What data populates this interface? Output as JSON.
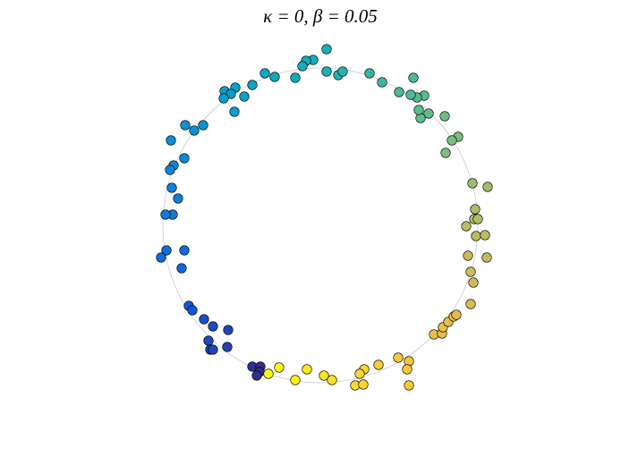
{
  "chart_data": {
    "type": "scatter",
    "title": "κ = 0, β = 0.05",
    "xlim": [
      -229,
      229
    ],
    "ylim": [
      -229,
      229
    ],
    "colormap": "parula",
    "reference_circle": {
      "r": 176
    },
    "x": [
      7,
      -8,
      -16,
      -20,
      7,
      20,
      25,
      -28,
      -51,
      -62,
      -76,
      -95,
      -107,
      -100,
      -108,
      -85,
      -96,
      -131,
      -151,
      -141,
      -167,
      -152,
      -164,
      -168,
      -166,
      -159,
      -165,
      -173,
      -152,
      -172,
      -178,
      -155,
      -147,
      -143,
      -130,
      -120,
      -103,
      -125,
      -104,
      -123,
      -120,
      -76,
      -67,
      -68,
      -71,
      -58,
      -46,
      -28,
      -15,
      4,
      13,
      39,
      48,
      49,
      44,
      65,
      87,
      99,
      97,
      99,
      127,
      136,
      137,
      143,
      149,
      152,
      168,
      171,
      168,
      165,
      186,
      174,
      184,
      163,
      172,
      176,
      173,
      187,
      170,
      140,
      154,
      147,
      139,
      121,
      112,
      110,
      116,
      108,
      101,
      88,
      69,
      55,
      104
    ],
    "y": [
      197,
      185,
      184,
      178,
      172,
      168,
      172,
      165,
      166,
      170,
      157,
      154,
      150,
      147,
      142,
      144,
      127,
      112,
      112,
      106,
      95,
      75,
      67,
      62,
      42,
      30,
      12,
      12,
      -28,
      -28,
      -36,
      -48,
      -90,
      -95,
      -105,
      -113,
      -117,
      -129,
      -136,
      -139,
      -139,
      -158,
      -158,
      -164,
      -168,
      -166,
      -159,
      -173,
      -161,
      -168,
      -173,
      -179,
      -178,
      -161,
      -166,
      -156,
      -148,
      -152,
      -161,
      -179,
      -122,
      -121,
      -114,
      -108,
      -102,
      -100,
      -88,
      -64,
      -52,
      -34,
      -36,
      -12,
      -11,
      -1,
      7,
      7,
      18,
      43,
      47,
      81,
      99,
      95,
      122,
      125,
      120,
      129,
      145,
      143,
      146,
      149,
      160,
      170,
      165
    ]
  }
}
